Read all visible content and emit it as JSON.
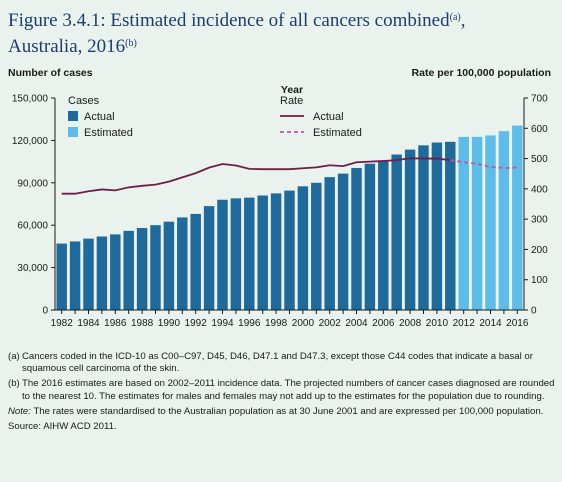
{
  "title": {
    "main": "Figure 3.4.1: Estimated incidence of all cancers combined",
    "sup1": "(a)",
    "line2": "Australia, 2016",
    "sup2": "(b)"
  },
  "chart_data": {
    "type": "bar",
    "y_left_label": "Number of cases",
    "y_right_label": "Rate per 100,000 population",
    "xlabel": "Year",
    "ylim_left": [
      0,
      150000
    ],
    "ylim_right": [
      0,
      700
    ],
    "yticks_left": [
      "0",
      "30,000",
      "60,000",
      "90,000",
      "120,000",
      "150,000"
    ],
    "yticks_right": [
      "0",
      "100",
      "200",
      "300",
      "400",
      "500",
      "600",
      "700"
    ],
    "xtick_labels": [
      "1982",
      "1984",
      "1986",
      "1988",
      "1990",
      "1992",
      "1994",
      "1996",
      "1998",
      "2000",
      "2002",
      "2004",
      "2006",
      "2008",
      "2010",
      "2012",
      "2014",
      "2016"
    ],
    "years": [
      1982,
      1983,
      1984,
      1985,
      1986,
      1987,
      1988,
      1989,
      1990,
      1991,
      1992,
      1993,
      1994,
      1995,
      1996,
      1997,
      1998,
      1999,
      2000,
      2001,
      2002,
      2003,
      2004,
      2005,
      2006,
      2007,
      2008,
      2009,
      2010,
      2011,
      2012,
      2013,
      2014,
      2015,
      2016
    ],
    "cases": [
      47000,
      48500,
      50500,
      52000,
      53500,
      56000,
      58000,
      60000,
      62500,
      65500,
      68000,
      73500,
      78000,
      79000,
      79500,
      81000,
      82500,
      84500,
      87500,
      90000,
      94000,
      96500,
      100500,
      103500,
      105500,
      110000,
      113500,
      116500,
      118500,
      119000,
      122500,
      122500,
      123500,
      126500,
      130500
    ],
    "cases_estimated_from_index": 30,
    "rates": [
      384,
      384,
      392,
      398,
      395,
      405,
      410,
      414,
      424,
      438,
      452,
      470,
      482,
      477,
      466,
      465,
      465,
      465,
      468,
      471,
      478,
      475,
      488,
      490,
      492,
      495,
      501,
      500,
      500,
      495,
      488,
      483,
      472,
      469,
      470
    ],
    "rates_estimated_from_index": 29,
    "legend": {
      "cases_title": "Cases",
      "cases_actual": "Actual",
      "cases_estimated": "Estimated",
      "rate_title": "Rate",
      "rate_actual": "Actual",
      "rate_estimated": "Estimated"
    },
    "colors": {
      "bar_actual": "#1f6a9b",
      "bar_estimated": "#5dbde8",
      "rate_line": "#6e1e48",
      "rate_line_estimated": "#c056a2"
    }
  },
  "notes": {
    "a_label": "(a)",
    "a_text": "Cancers coded in the ICD-10 as C00–C97, D45, D46, D47.1 and D47.3, except those C44 codes that indicate a basal or squamous cell carcinoma of the skin.",
    "b_label": "(b)",
    "b_text": "The 2016 estimates are based on 2002–2011 incidence data. The projected numbers of cancer cases diagnosed are rounded to the nearest 10. The estimates for males and females may not add up to the estimates for the population due to rounding.",
    "note_label": "Note:",
    "note_text": "The rates were standardised to the Australian population as at 30 June 2001 and are expressed per 100,000 population.",
    "source": "Source: AIHW ACD 2011."
  }
}
